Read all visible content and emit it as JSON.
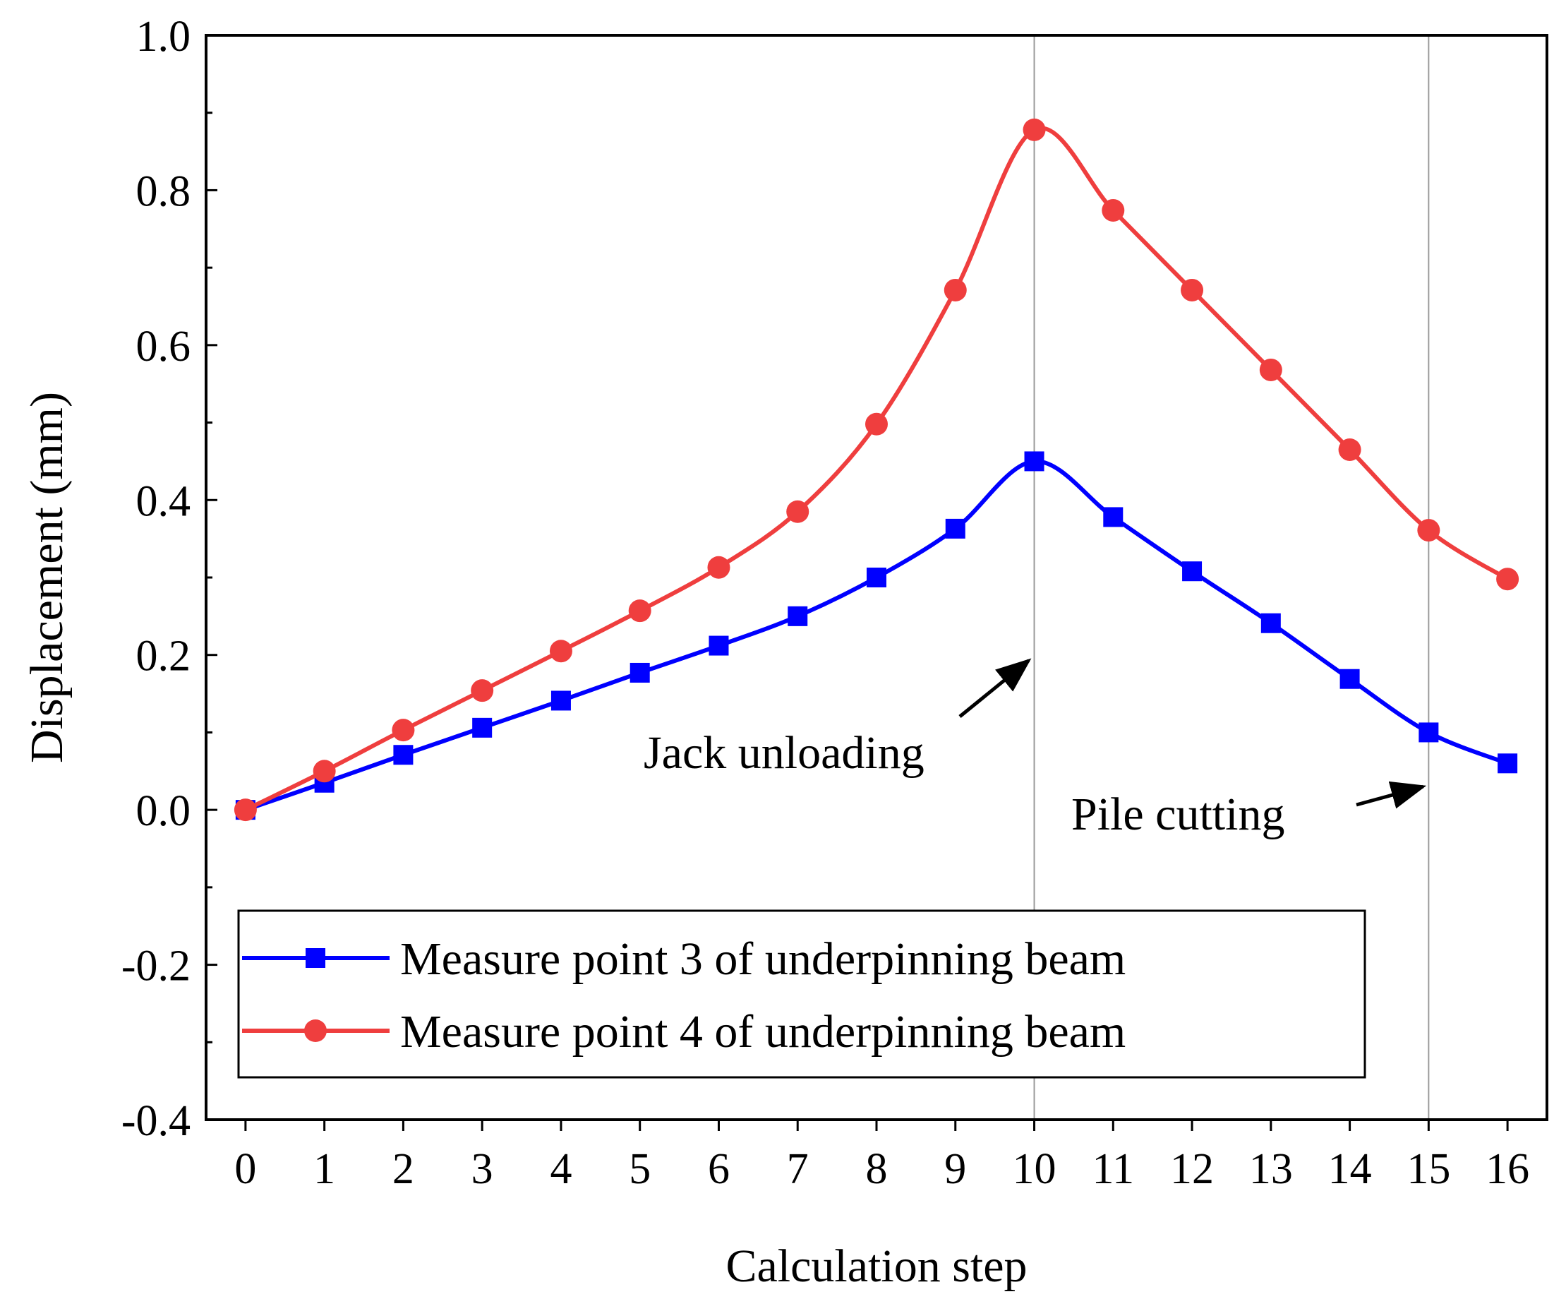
{
  "chart_data": {
    "type": "line",
    "title": "",
    "xlabel": "Calculation step",
    "ylabel": "Displacement (mm)",
    "xlim": [
      -0.5,
      16.5
    ],
    "ylim": [
      -0.4,
      1.0
    ],
    "x_ticks": [
      0,
      1,
      2,
      3,
      4,
      5,
      6,
      7,
      8,
      9,
      10,
      11,
      12,
      13,
      14,
      15,
      16
    ],
    "x_tick_labels": [
      "0",
      "1",
      "2",
      "3",
      "4",
      "5",
      "6",
      "7",
      "8",
      "9",
      "10",
      "11",
      "12",
      "13",
      "14",
      "15",
      "16"
    ],
    "y_ticks": [
      -0.4,
      -0.2,
      0.0,
      0.2,
      0.4,
      0.6,
      0.8,
      1.0
    ],
    "y_tick_labels": [
      "-0.4",
      "-0.2",
      "0.0",
      "0.2",
      "0.4",
      "0.6",
      "0.8",
      "1.0"
    ],
    "y_minor_ticks": [
      -0.3,
      -0.1,
      0.1,
      0.3,
      0.5,
      0.7,
      0.9
    ],
    "grid": false,
    "legend_position": "bottom-left",
    "series": [
      {
        "name": "Measure point 3 of underpinning beam",
        "marker": "square",
        "color": "#0000ff",
        "x": [
          0,
          1,
          2,
          3,
          4,
          5,
          6,
          7,
          8,
          9,
          10,
          11,
          12,
          13,
          14,
          15,
          16
        ],
        "values": [
          0.0,
          0.035,
          0.071,
          0.106,
          0.141,
          0.177,
          0.212,
          0.25,
          0.3,
          0.363,
          0.45,
          0.378,
          0.308,
          0.241,
          0.169,
          0.1,
          0.06
        ]
      },
      {
        "name": "Measure point 4 of underpinning beam",
        "marker": "circle",
        "color": "#ef3e3e",
        "x": [
          0,
          1,
          2,
          3,
          4,
          5,
          6,
          7,
          8,
          9,
          10,
          11,
          12,
          13,
          14,
          15,
          16
        ],
        "values": [
          0.0,
          0.05,
          0.103,
          0.154,
          0.205,
          0.257,
          0.313,
          0.385,
          0.498,
          0.671,
          0.878,
          0.774,
          0.671,
          0.568,
          0.465,
          0.361,
          0.298
        ]
      }
    ],
    "vertical_lines": [
      10,
      15
    ],
    "annotations": [
      {
        "text": "Jack unloading",
        "arrow_target": [
          10,
          0.2
        ]
      },
      {
        "text": "Pile cutting",
        "arrow_target": [
          15,
          0.03
        ]
      }
    ]
  }
}
